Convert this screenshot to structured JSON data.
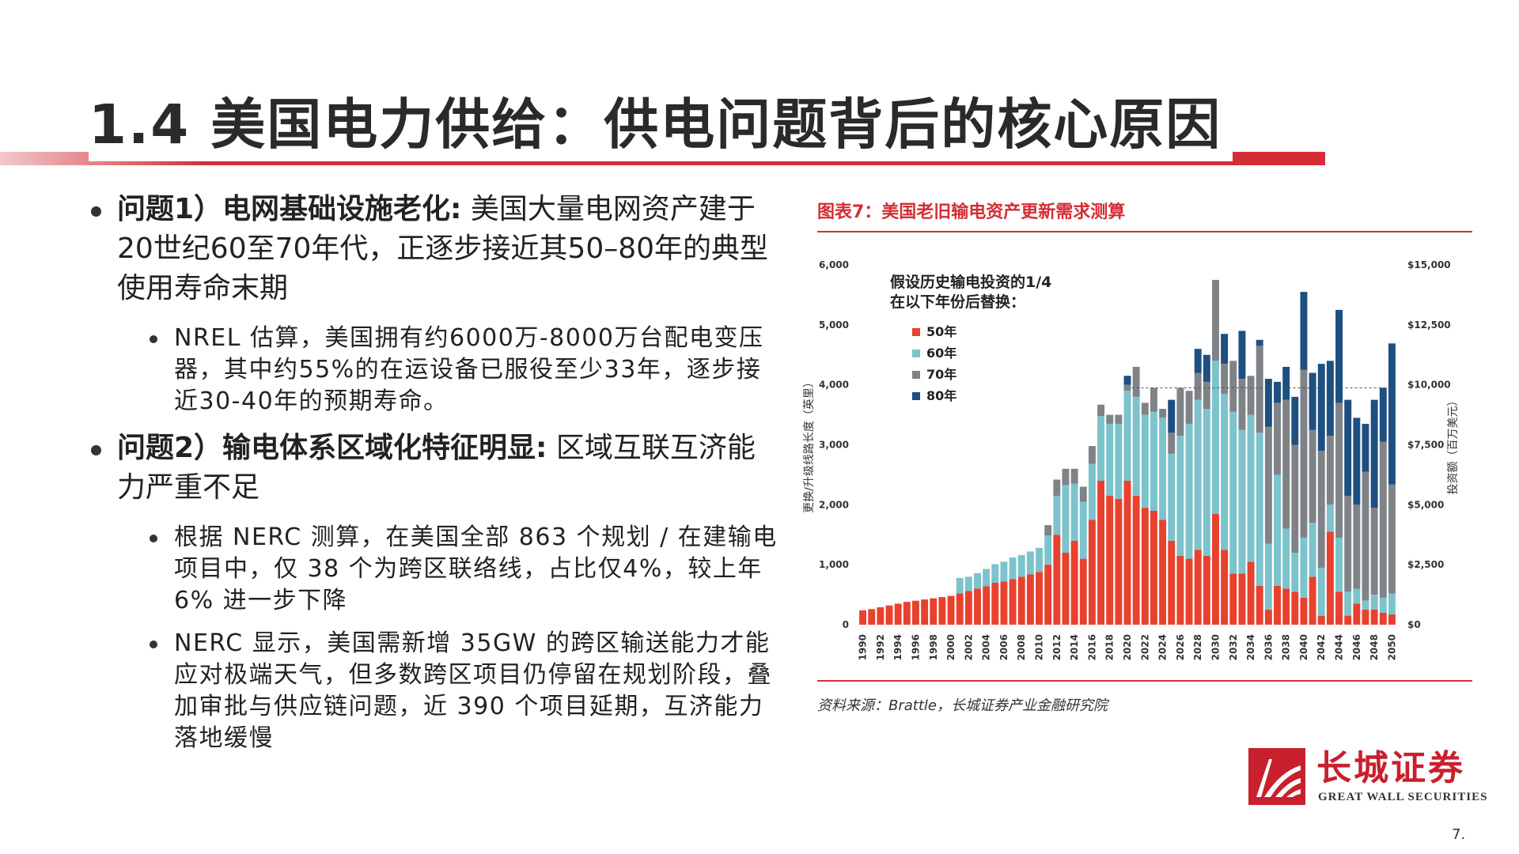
{
  "page": {
    "title": "1.4 美国电力供给：供电问题背后的核心原因",
    "page_number": "7."
  },
  "bullets": [
    {
      "head": "问题1）电网基础设施老化:",
      "text": " 美国大量电网资产建于20世纪60至70年代，正逐步接近其50–80年的典型使用寿命末期",
      "sub": [
        "NREL 估算，美国拥有约6000万-8000万台配电变压器，其中约55%的在运设备已服役至少33年，逐步接近30-40年的预期寿命。"
      ]
    },
    {
      "head": "问题2）输电体系区域化特征明显:",
      "text": " 区域互联互济能力严重不足",
      "sub": [
        "根据 NERC 测算，在美国全部 863 个规划 / 在建输电项目中，仅 38 个为跨区联络线，占比仅4%，较上年 6% 进一步下降",
        "NERC 显示，美国需新增 35GW 的跨区输送能力才能应对极端天气，但多数跨区项目仍停留在规划阶段，叠加审批与供应链问题，近 390 个项目延期，互济能力落地缓慢"
      ]
    }
  ],
  "figure": {
    "title": "图表7：美国老旧输电资产更新需求测算",
    "source": "资料来源：Brattle，长城证券产业金融研究院"
  },
  "logo": {
    "cn": "长城证券",
    "en": "GREAT WALL SECURITIES"
  },
  "colors": {
    "accent": "#d42d36",
    "s50": "#e8412e",
    "s60": "#7cc3cc",
    "s70": "#7f8387",
    "s80": "#1d4f80"
  },
  "chart_data": {
    "type": "bar",
    "stacked": true,
    "legend_title": "假设历史输电投资的1/4\n在以下年份后替换：",
    "legend_position": "top-left",
    "ylabel": "更换/升级线路长度（英里）",
    "y2label": "投资额（百万美元）",
    "ylim": [
      0,
      6000
    ],
    "y2lim": [
      0,
      15000
    ],
    "yticks": [
      "0",
      "1,000",
      "2,000",
      "3,000",
      "4,000",
      "5,000",
      "6,000"
    ],
    "y2ticks": [
      "$0",
      "$2,500",
      "$5,000",
      "$7,500",
      "$10,000",
      "$12,500",
      "$15,000"
    ],
    "reference_line": 3950,
    "x": [
      1990,
      1991,
      1992,
      1993,
      1994,
      1995,
      1996,
      1997,
      1998,
      1999,
      2000,
      2001,
      2002,
      2003,
      2004,
      2005,
      2006,
      2007,
      2008,
      2009,
      2010,
      2011,
      2012,
      2013,
      2014,
      2015,
      2016,
      2017,
      2018,
      2019,
      2020,
      2021,
      2022,
      2023,
      2024,
      2025,
      2026,
      2027,
      2028,
      2029,
      2030,
      2031,
      2032,
      2033,
      2034,
      2035,
      2036,
      2037,
      2038,
      2039,
      2040,
      2041,
      2042,
      2043,
      2044,
      2045,
      2046,
      2047,
      2048,
      2049,
      2050
    ],
    "xticklabels": [
      "1990",
      "1992",
      "1994",
      "1996",
      "1998",
      "2000",
      "2002",
      "2004",
      "2006",
      "2008",
      "2010",
      "2012",
      "2014",
      "2016",
      "2018",
      "2020",
      "2022",
      "2024",
      "2026",
      "2028",
      "2030",
      "2032",
      "2034",
      "2036",
      "2038",
      "2040",
      "2042",
      "2044",
      "2046",
      "2048",
      "2050"
    ],
    "series": [
      {
        "name": "50年",
        "values": [
          240,
          260,
          290,
          320,
          350,
          380,
          400,
          420,
          440,
          460,
          480,
          520,
          560,
          600,
          640,
          700,
          720,
          760,
          800,
          840,
          880,
          1000,
          1500,
          1200,
          1400,
          1100,
          1750,
          2400,
          2150,
          2100,
          2400,
          2150,
          1950,
          1900,
          1750,
          1400,
          1150,
          1100,
          1250,
          1150,
          1850,
          1250,
          850,
          850,
          1050,
          650,
          250,
          650,
          600,
          550,
          450,
          800,
          150,
          1550,
          550,
          150,
          350,
          250,
          250,
          200,
          170
        ]
      },
      {
        "name": "60年",
        "values": [
          0,
          0,
          0,
          0,
          0,
          0,
          0,
          0,
          0,
          0,
          0,
          260,
          240,
          260,
          290,
          310,
          330,
          360,
          360,
          380,
          400,
          490,
          650,
          1130,
          950,
          950,
          930,
          1080,
          1200,
          1250,
          1500,
          1650,
          1550,
          1650,
          1700,
          1450,
          2000,
          2250,
          2500,
          2450,
          2550,
          2600,
          2700,
          2400,
          2450,
          2550,
          1100,
          1850,
          1000,
          650,
          1000,
          900,
          800,
          450,
          900,
          400,
          250,
          150,
          250,
          250,
          350
        ]
      },
      {
        "name": "70年",
        "values": [
          0,
          0,
          0,
          0,
          0,
          0,
          0,
          0,
          0,
          0,
          0,
          0,
          0,
          0,
          0,
          0,
          0,
          0,
          0,
          0,
          0,
          170,
          270,
          270,
          250,
          250,
          300,
          190,
          150,
          150,
          100,
          500,
          200,
          400,
          150,
          350,
          800,
          550,
          450,
          450,
          1350,
          500,
          850,
          850,
          650,
          1450,
          1950,
          1200,
          2150,
          1800,
          2800,
          1550,
          1950,
          1150,
          2250,
          1600,
          1400,
          2150,
          1450,
          2600,
          1820
        ]
      },
      {
        "name": "80年",
        "values": [
          0,
          0,
          0,
          0,
          0,
          0,
          0,
          0,
          0,
          0,
          0,
          0,
          0,
          0,
          0,
          0,
          0,
          0,
          0,
          0,
          0,
          0,
          0,
          0,
          0,
          0,
          0,
          0,
          0,
          0,
          150,
          0,
          0,
          0,
          0,
          550,
          0,
          0,
          400,
          450,
          0,
          500,
          0,
          800,
          0,
          100,
          800,
          350,
          550,
          800,
          1300,
          950,
          1450,
          1250,
          1550,
          1600,
          1450,
          800,
          1800,
          900,
          2350
        ]
      }
    ]
  }
}
